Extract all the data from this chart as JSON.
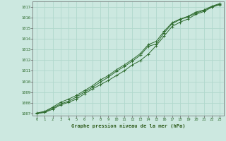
{
  "title": "Graphe pression niveau de la mer (hPa)",
  "bg_color": "#cce8e0",
  "grid_color": "#b0d8cc",
  "line_color": "#2d6a2d",
  "marker_color": "#2d6a2d",
  "xlim": [
    -0.5,
    23.5
  ],
  "ylim": [
    1006.8,
    1017.5
  ],
  "xticks": [
    0,
    1,
    2,
    3,
    4,
    5,
    6,
    7,
    8,
    9,
    10,
    11,
    12,
    13,
    14,
    15,
    16,
    17,
    18,
    19,
    20,
    21,
    22,
    23
  ],
  "yticks": [
    1007,
    1008,
    1009,
    1010,
    1011,
    1012,
    1013,
    1014,
    1015,
    1016,
    1017
  ],
  "series1_x": [
    0,
    1,
    2,
    3,
    4,
    5,
    6,
    7,
    8,
    9,
    10,
    11,
    12,
    13,
    14,
    15,
    16,
    17,
    18,
    19,
    20,
    21,
    22,
    23
  ],
  "series1_y": [
    1007.0,
    1007.1,
    1007.4,
    1007.8,
    1008.05,
    1008.35,
    1008.85,
    1009.3,
    1009.7,
    1010.1,
    1010.55,
    1011.0,
    1011.55,
    1011.95,
    1012.55,
    1013.35,
    1014.25,
    1015.15,
    1015.55,
    1015.85,
    1016.3,
    1016.55,
    1016.95,
    1017.2
  ],
  "series2_x": [
    0,
    1,
    2,
    3,
    4,
    5,
    6,
    7,
    8,
    9,
    10,
    11,
    12,
    13,
    14,
    15,
    16,
    17,
    18,
    19,
    20,
    21,
    22,
    23
  ],
  "series2_y": [
    1007.0,
    1007.15,
    1007.5,
    1007.9,
    1008.15,
    1008.55,
    1009.0,
    1009.45,
    1009.95,
    1010.4,
    1010.95,
    1011.4,
    1011.9,
    1012.45,
    1013.3,
    1013.5,
    1014.55,
    1015.4,
    1015.8,
    1016.05,
    1016.4,
    1016.65,
    1017.0,
    1017.25
  ],
  "series3_x": [
    0,
    1,
    2,
    3,
    4,
    5,
    6,
    7,
    8,
    9,
    10,
    11,
    12,
    13,
    14,
    15,
    16,
    17,
    18,
    19,
    20,
    21,
    22,
    23
  ],
  "series3_y": [
    1007.05,
    1007.2,
    1007.6,
    1008.05,
    1008.35,
    1008.7,
    1009.15,
    1009.6,
    1010.15,
    1010.55,
    1011.1,
    1011.55,
    1012.05,
    1012.6,
    1013.45,
    1013.75,
    1014.7,
    1015.5,
    1015.85,
    1016.1,
    1016.5,
    1016.7,
    1017.05,
    1017.3
  ]
}
